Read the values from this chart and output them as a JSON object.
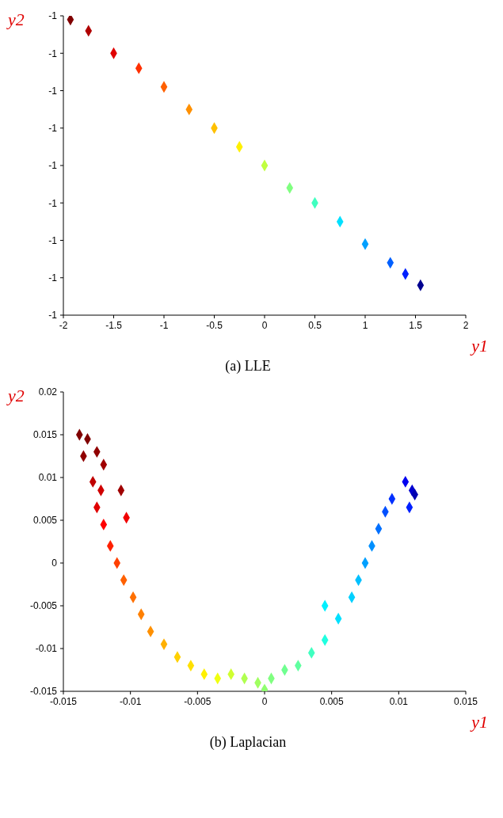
{
  "chart_data": [
    {
      "type": "scatter",
      "title": "(a) LLE",
      "xlabel": "y1",
      "ylabel": "y2",
      "marker": "diamond",
      "grid": false,
      "x": [
        -1.93,
        -1.75,
        -1.5,
        -1.25,
        -1,
        -0.75,
        -0.5,
        -0.25,
        0,
        0.25,
        0.5,
        0.75,
        1,
        1.25,
        1.4,
        1.55
      ],
      "values": [
        -0.999961,
        -0.999964,
        -0.99997,
        -0.999974,
        -0.999979,
        -0.999985,
        -0.99999,
        -0.999995,
        -1,
        -1.000006,
        -1.00001,
        -1.000015,
        -1.000021,
        -1.000026,
        -1.000029,
        -1.000032
      ],
      "colors": [
        "#800000",
        "#b00000",
        "#e00000",
        "#ff3000",
        "#ff6000",
        "#ff9000",
        "#ffc000",
        "#fff000",
        "#c0ff40",
        "#80ff80",
        "#40ffc0",
        "#00e0ff",
        "#00a0ff",
        "#0060ff",
        "#0020ff",
        "#000090"
      ],
      "xlim": [
        -2,
        2
      ],
      "xticks": [
        -2,
        -1.5,
        -1,
        -0.5,
        0,
        0.5,
        1,
        1.5,
        2
      ],
      "ylim": [
        -1.00004,
        -0.99996
      ],
      "yticks": [
        {
          "value": -1.00004,
          "label": "-1"
        },
        {
          "value": -1.00003,
          "label": "-1"
        },
        {
          "value": -1.00002,
          "label": "-1"
        },
        {
          "value": -1.00001,
          "label": "-1"
        },
        {
          "value": -1,
          "label": "-1"
        },
        {
          "value": -0.99999,
          "label": "-1"
        },
        {
          "value": -0.99998,
          "label": "-1"
        },
        {
          "value": -0.99997,
          "label": "-1"
        },
        {
          "value": -0.99996,
          "label": "-1"
        }
      ]
    },
    {
      "type": "scatter",
      "title": "(b) Laplacian",
      "xlabel": "y1",
      "ylabel": "y2",
      "marker": "diamond",
      "grid": false,
      "x": [
        -0.0138,
        -0.0132,
        -0.0135,
        -0.0125,
        -0.012,
        -0.0107,
        -0.0128,
        -0.0122,
        -0.0125,
        -0.0103,
        -0.012,
        -0.0115,
        -0.011,
        -0.0105,
        -0.0098,
        -0.0092,
        -0.0085,
        -0.0075,
        -0.0065,
        -0.0055,
        -0.0045,
        -0.0035,
        -0.0025,
        -0.0015,
        -0.0005,
        0,
        0.0005,
        0.0015,
        0.0025,
        0.0035,
        0.0045,
        0.0045,
        0.0055,
        0.0065,
        0.007,
        0.0075,
        0.008,
        0.0085,
        0.009,
        0.0095,
        0.0108,
        0.0105,
        0.011,
        0.0112
      ],
      "values": [
        0.015,
        0.0145,
        0.0125,
        0.013,
        0.0115,
        0.0085,
        0.0095,
        0.0085,
        0.0065,
        0.0053,
        0.0045,
        0.002,
        0,
        -0.002,
        -0.004,
        -0.006,
        -0.008,
        -0.0095,
        -0.011,
        -0.012,
        -0.013,
        -0.0135,
        -0.013,
        -0.0135,
        -0.014,
        -0.0148,
        -0.0135,
        -0.0125,
        -0.012,
        -0.0105,
        -0.009,
        -0.005,
        -0.0065,
        -0.004,
        -0.002,
        0,
        0.002,
        0.004,
        0.006,
        0.0075,
        0.0065,
        0.0095,
        0.0085,
        0.008
      ],
      "colors": [
        "#800000",
        "#800000",
        "#900000",
        "#900000",
        "#a00000",
        "#a00000",
        "#c00000",
        "#d00000",
        "#e00000",
        "#f00000",
        "#ff0000",
        "#ff2000",
        "#ff4000",
        "#ff6000",
        "#ff7000",
        "#ff8000",
        "#ff9000",
        "#ffb000",
        "#ffd000",
        "#ffe000",
        "#fff000",
        "#f0ff10",
        "#d0ff30",
        "#b0ff50",
        "#a0ff60",
        "#90ff70",
        "#80ff80",
        "#70ff90",
        "#60ffa0",
        "#40ffc0",
        "#20ffe0",
        "#00f0ff",
        "#00e0ff",
        "#00d0ff",
        "#00c0ff",
        "#00a0ff",
        "#0090ff",
        "#0070ff",
        "#0050ff",
        "#0030ff",
        "#0020ff",
        "#0000f0",
        "#0000d0",
        "#0000b0"
      ],
      "xlim": [
        -0.015,
        0.015
      ],
      "xticks": [
        -0.015,
        -0.01,
        -0.005,
        0,
        0.005,
        0.01,
        0.015
      ],
      "ylim": [
        -0.015,
        0.02
      ],
      "yticks": [
        -0.015,
        -0.01,
        -0.005,
        0,
        0.005,
        0.01,
        0.015,
        0.02
      ]
    }
  ]
}
